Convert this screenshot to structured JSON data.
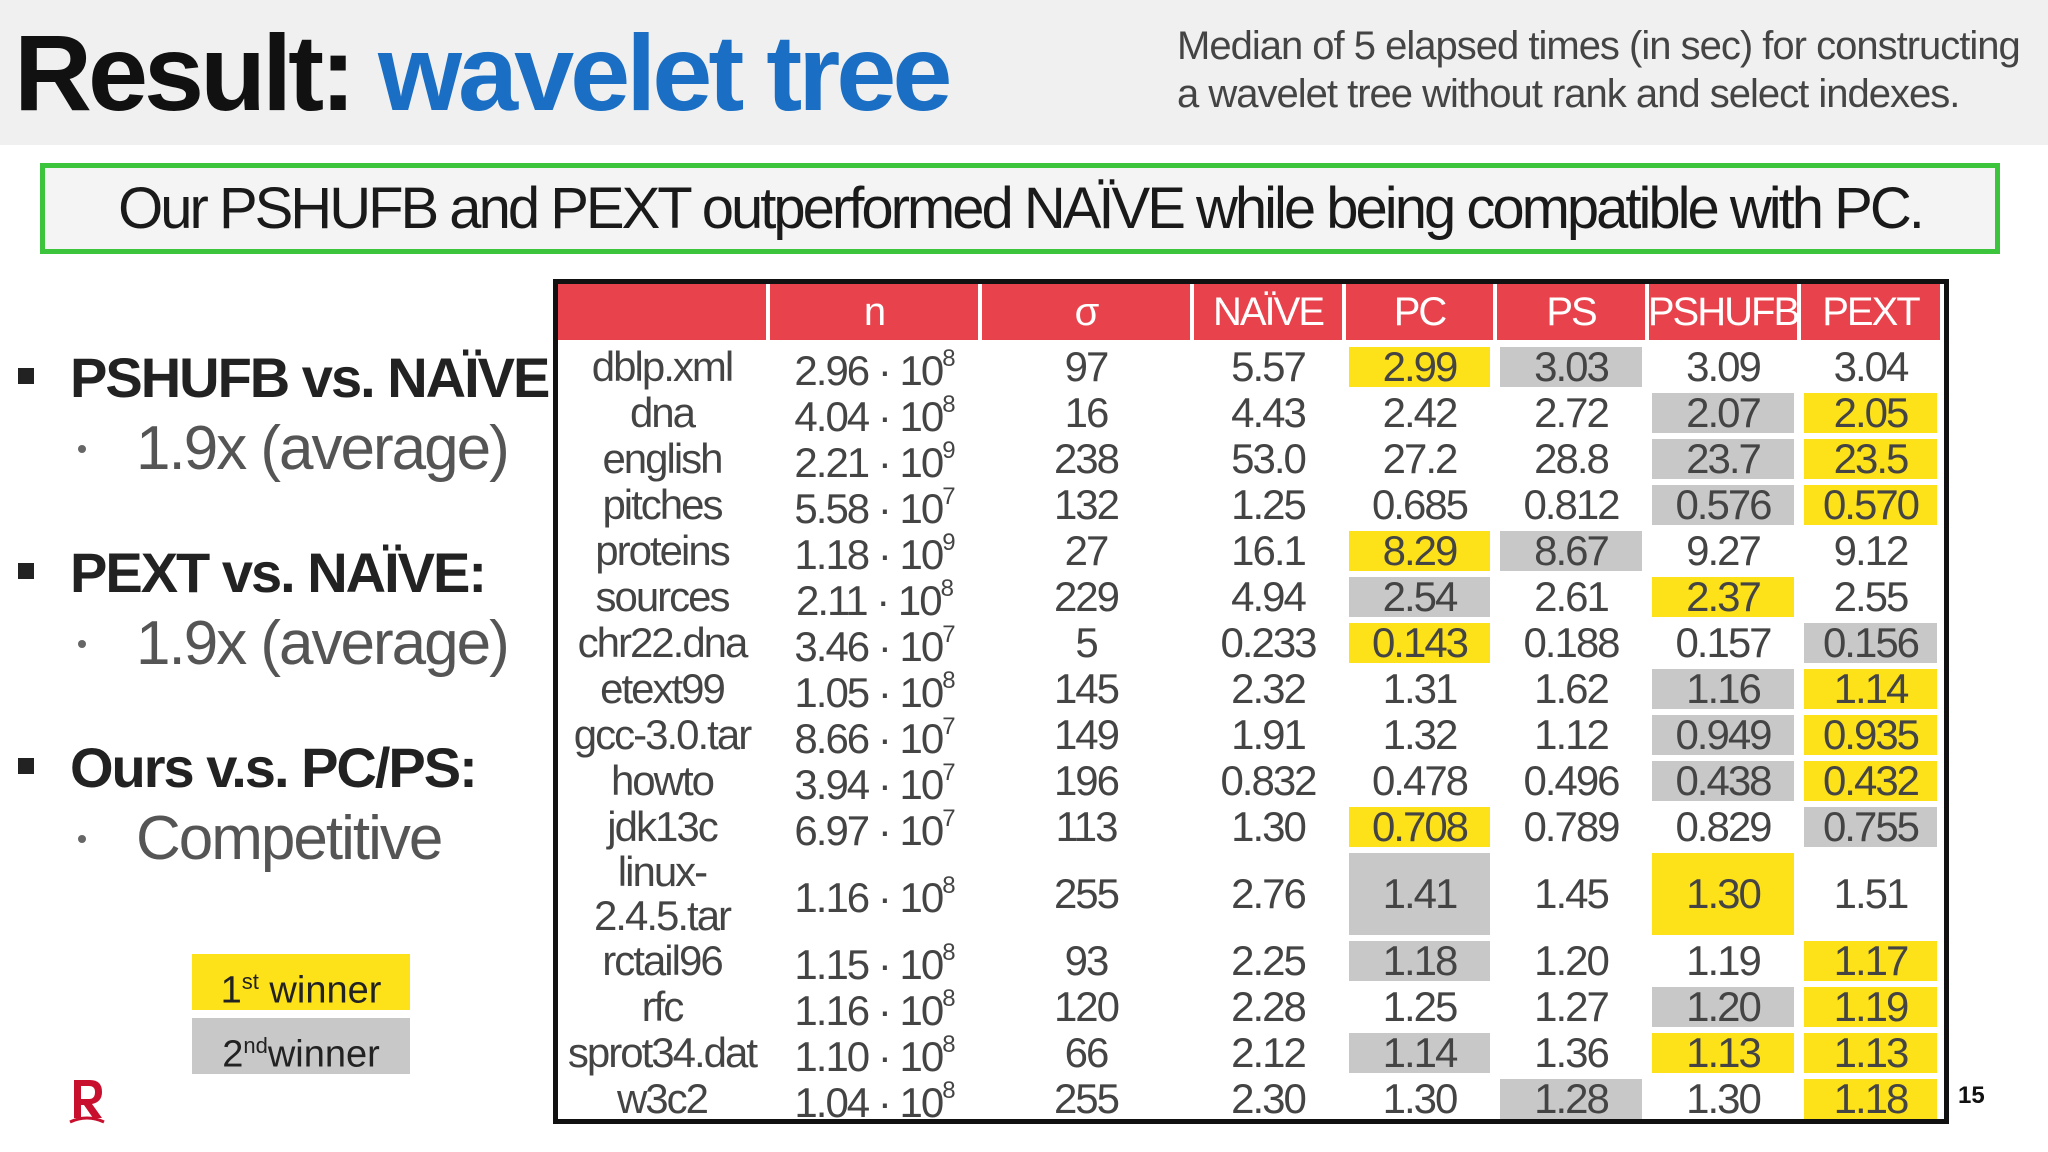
{
  "header": {
    "title_prefix": "Result: ",
    "title_accent": "wavelet tree",
    "subtitle_line1": "Median of 5 elapsed times (in sec) for constructing",
    "subtitle_line2": "a wavelet tree without rank and select indexes."
  },
  "summary": "Our PSHUFB and PEXT outperformed NAÏVE while being compatible with PC.",
  "bullets": [
    {
      "head": "PSHUFB vs. NAÏVE:",
      "sub": "1.9x (average)"
    },
    {
      "head": "PEXT vs. NAÏVE:",
      "sub": "1.9x (average)"
    },
    {
      "head": "Ours v.s. PC/PS:",
      "sub": "Competitive"
    }
  ],
  "legend": {
    "first_num": "1",
    "first_sup": "st",
    "first_text": " winner",
    "second_num": "2",
    "second_sup": "nd",
    "second_text": "winner",
    "first_color": "#fde21a",
    "second_color": "#c8c8c8"
  },
  "page_number": "15",
  "table": {
    "columns": [
      "",
      "n",
      "σ",
      "NAÏVE",
      "PC",
      "PS",
      "PSHUFB",
      "PEXT"
    ],
    "rows": [
      {
        "name": "dblp.xml",
        "n_base": "2.96 · 10",
        "n_exp": "8",
        "sigma": "97",
        "vals": [
          "5.57",
          "2.99",
          "3.03",
          "3.09",
          "3.04"
        ],
        "hl": [
          "",
          "y",
          "g",
          "",
          ""
        ]
      },
      {
        "name": "dna",
        "n_base": "4.04 · 10",
        "n_exp": "8",
        "sigma": "16",
        "vals": [
          "4.43",
          "2.42",
          "2.72",
          "2.07",
          "2.05"
        ],
        "hl": [
          "",
          "",
          "",
          "g",
          "y"
        ]
      },
      {
        "name": "english",
        "n_base": "2.21 · 10",
        "n_exp": "9",
        "sigma": "238",
        "vals": [
          "53.0",
          "27.2",
          "28.8",
          "23.7",
          "23.5"
        ],
        "hl": [
          "",
          "",
          "",
          "g",
          "y"
        ]
      },
      {
        "name": "pitches",
        "n_base": "5.58 · 10",
        "n_exp": "7",
        "sigma": "132",
        "vals": [
          "1.25",
          "0.685",
          "0.812",
          "0.576",
          "0.570"
        ],
        "hl": [
          "",
          "",
          "",
          "g",
          "y"
        ]
      },
      {
        "name": "proteins",
        "n_base": "1.18 · 10",
        "n_exp": "9",
        "sigma": "27",
        "vals": [
          "16.1",
          "8.29",
          "8.67",
          "9.27",
          "9.12"
        ],
        "hl": [
          "",
          "y",
          "g",
          "",
          ""
        ]
      },
      {
        "name": "sources",
        "n_base": "2.11 · 10",
        "n_exp": "8",
        "sigma": "229",
        "vals": [
          "4.94",
          "2.54",
          "2.61",
          "2.37",
          "2.55"
        ],
        "hl": [
          "",
          "g",
          "",
          "y",
          ""
        ]
      },
      {
        "name": "chr22.dna",
        "n_base": "3.46 · 10",
        "n_exp": "7",
        "sigma": "5",
        "vals": [
          "0.233",
          "0.143",
          "0.188",
          "0.157",
          "0.156"
        ],
        "hl": [
          "",
          "y",
          "",
          "",
          "g"
        ]
      },
      {
        "name": "etext99",
        "n_base": "1.05 · 10",
        "n_exp": "8",
        "sigma": "145",
        "vals": [
          "2.32",
          "1.31",
          "1.62",
          "1.16",
          "1.14"
        ],
        "hl": [
          "",
          "",
          "",
          "g",
          "y"
        ]
      },
      {
        "name": "gcc-3.0.tar",
        "n_base": "8.66 · 10",
        "n_exp": "7",
        "sigma": "149",
        "vals": [
          "1.91",
          "1.32",
          "1.12",
          "0.949",
          "0.935"
        ],
        "hl": [
          "",
          "",
          "",
          "g",
          "y"
        ]
      },
      {
        "name": "howto",
        "n_base": "3.94 · 10",
        "n_exp": "7",
        "sigma": "196",
        "vals": [
          "0.832",
          "0.478",
          "0.496",
          "0.438",
          "0.432"
        ],
        "hl": [
          "",
          "",
          "",
          "g",
          "y"
        ]
      },
      {
        "name": "jdk13c",
        "n_base": "6.97 · 10",
        "n_exp": "7",
        "sigma": "113",
        "vals": [
          "1.30",
          "0.708",
          "0.789",
          "0.829",
          "0.755"
        ],
        "hl": [
          "",
          "y",
          "",
          "",
          "g"
        ]
      },
      {
        "name": "linux-2.4.5.tar",
        "n_base": "1.16 · 10",
        "n_exp": "8",
        "sigma": "255",
        "vals": [
          "2.76",
          "1.41",
          "1.45",
          "1.30",
          "1.51"
        ],
        "hl": [
          "",
          "g",
          "",
          "y",
          ""
        ]
      },
      {
        "name": "rctail96",
        "n_base": "1.15 · 10",
        "n_exp": "8",
        "sigma": "93",
        "vals": [
          "2.25",
          "1.18",
          "1.20",
          "1.19",
          "1.17"
        ],
        "hl": [
          "",
          "g",
          "",
          "",
          "y"
        ]
      },
      {
        "name": "rfc",
        "n_base": "1.16 · 10",
        "n_exp": "8",
        "sigma": "120",
        "vals": [
          "2.28",
          "1.25",
          "1.27",
          "1.20",
          "1.19"
        ],
        "hl": [
          "",
          "",
          "",
          "g",
          "y"
        ]
      },
      {
        "name": "sprot34.dat",
        "n_base": "1.10 · 10",
        "n_exp": "8",
        "sigma": "66",
        "vals": [
          "2.12",
          "1.14",
          "1.36",
          "1.13",
          "1.13"
        ],
        "hl": [
          "",
          "g",
          "",
          "y",
          "y"
        ]
      },
      {
        "name": "w3c2",
        "n_base": "1.04 · 10",
        "n_exp": "8",
        "sigma": "255",
        "vals": [
          "2.30",
          "1.30",
          "1.28",
          "1.30",
          "1.18"
        ],
        "hl": [
          "",
          "",
          "g",
          "",
          "y"
        ]
      }
    ]
  }
}
